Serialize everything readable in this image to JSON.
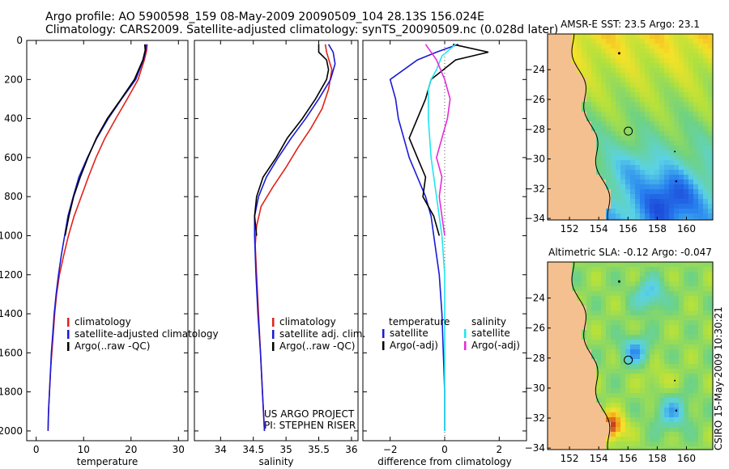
{
  "header": {
    "line1": "Argo profile: AO 5900598_159 08-May-2009 20090509_104 28.13S 156.024E",
    "line2": "Climatology: CARS2009. Satellite-adjusted climatology: synTS_20090509.nc (0.028d later)"
  },
  "colors": {
    "climatology": "#e0231b",
    "satellite": "#1a1ad6",
    "argo": "#000000",
    "cyan": "#22e4ef",
    "magenta": "#e52ad8",
    "land": "#f5c08f"
  },
  "credits": {
    "line1": "US ARGO PROJECT",
    "line2": "PI: STEPHEN RISER"
  },
  "stamp": "CSIRO 15-May-2009 10:30:21",
  "chart_data": [
    {
      "type": "line",
      "id": "temperature",
      "xlabel": "temperature",
      "xlim": [
        -2,
        32
      ],
      "ylim": [
        2050,
        0
      ],
      "xticks": [
        0,
        10,
        20,
        30
      ],
      "yticks": [
        0,
        200,
        400,
        600,
        800,
        1000,
        1200,
        1400,
        1600,
        1800,
        2000
      ],
      "legend": [
        "climatology",
        "satellite-adjusted climatology",
        "Argo(..raw -QC)"
      ],
      "series": [
        {
          "name": "climatology",
          "color": "#e0231b",
          "points": [
            [
              23.4,
              20
            ],
            [
              23.3,
              50
            ],
            [
              22.8,
              100
            ],
            [
              21.5,
              200
            ],
            [
              19.2,
              300
            ],
            [
              16.8,
              400
            ],
            [
              14.5,
              500
            ],
            [
              12.6,
              600
            ],
            [
              11,
              700
            ],
            [
              9.5,
              800
            ],
            [
              8,
              900
            ],
            [
              6.8,
              1000
            ],
            [
              5.8,
              1100
            ],
            [
              4.9,
              1200
            ],
            [
              4.3,
              1300
            ],
            [
              3.9,
              1400
            ],
            [
              3.6,
              1500
            ],
            [
              3.3,
              1600
            ],
            [
              3,
              1700
            ],
            [
              2.8,
              1800
            ],
            [
              2.6,
              1900
            ],
            [
              2.5,
              2000
            ]
          ]
        },
        {
          "name": "satellite-adjusted climatology",
          "color": "#1a1ad6",
          "points": [
            [
              23.2,
              20
            ],
            [
              23.1,
              50
            ],
            [
              22.6,
              100
            ],
            [
              21,
              200
            ],
            [
              18,
              300
            ],
            [
              15.2,
              400
            ],
            [
              12.8,
              500
            ],
            [
              10.8,
              600
            ],
            [
              9,
              700
            ],
            [
              7.8,
              800
            ],
            [
              6.7,
              900
            ],
            [
              6,
              1000
            ],
            [
              5.3,
              1100
            ],
            [
              4.7,
              1200
            ],
            [
              4.2,
              1300
            ],
            [
              3.8,
              1400
            ],
            [
              3.5,
              1500
            ],
            [
              3.2,
              1600
            ],
            [
              3,
              1700
            ],
            [
              2.8,
              1800
            ],
            [
              2.6,
              1900
            ],
            [
              2.5,
              2000
            ]
          ]
        },
        {
          "name": "Argo(..raw -QC)",
          "color": "#000000",
          "points": [
            [
              22.9,
              20
            ],
            [
              23,
              50
            ],
            [
              22.5,
              100
            ],
            [
              20.7,
              200
            ],
            [
              17.9,
              300
            ],
            [
              15,
              400
            ],
            [
              12.7,
              500
            ],
            [
              10.9,
              600
            ],
            [
              9.3,
              700
            ],
            [
              7.9,
              800
            ],
            [
              6.9,
              900
            ],
            [
              6.1,
              1000
            ]
          ]
        }
      ]
    },
    {
      "type": "line",
      "id": "salinity",
      "xlabel": "salinity",
      "xlim": [
        33.6,
        36.1
      ],
      "ylim": [
        2050,
        0
      ],
      "xticks": [
        34,
        34.5,
        35,
        35.5,
        36
      ],
      "legend": [
        "climatology",
        "satellite adj. clim.",
        "Argo(..raw -QC)"
      ],
      "series": [
        {
          "name": "climatology",
          "color": "#e0231b",
          "points": [
            [
              35.6,
              20
            ],
            [
              35.62,
              60
            ],
            [
              35.7,
              150
            ],
            [
              35.65,
              250
            ],
            [
              35.55,
              350
            ],
            [
              35.38,
              450
            ],
            [
              35.18,
              550
            ],
            [
              35,
              650
            ],
            [
              34.8,
              750
            ],
            [
              34.62,
              850
            ],
            [
              34.55,
              950
            ],
            [
              34.53,
              1050
            ],
            [
              34.55,
              1200
            ],
            [
              34.58,
              1400
            ],
            [
              34.61,
              1600
            ],
            [
              34.64,
              1800
            ],
            [
              34.67,
              2000
            ]
          ]
        },
        {
          "name": "satellite adj. clim.",
          "color": "#1a1ad6",
          "points": [
            [
              35.65,
              20
            ],
            [
              35.72,
              60
            ],
            [
              35.75,
              120
            ],
            [
              35.68,
              200
            ],
            [
              35.5,
              300
            ],
            [
              35.3,
              400
            ],
            [
              35.08,
              500
            ],
            [
              34.88,
              600
            ],
            [
              34.7,
              700
            ],
            [
              34.58,
              800
            ],
            [
              34.52,
              900
            ],
            [
              34.52,
              1000
            ],
            [
              34.54,
              1200
            ],
            [
              34.57,
              1400
            ],
            [
              34.61,
              1600
            ],
            [
              34.64,
              1800
            ],
            [
              34.67,
              2000
            ]
          ]
        },
        {
          "name": "Argo(..raw -QC)",
          "color": "#000000",
          "points": [
            [
              35.5,
              20
            ],
            [
              35.5,
              60
            ],
            [
              35.62,
              100
            ],
            [
              35.65,
              150
            ],
            [
              35.62,
              200
            ],
            [
              35.45,
              300
            ],
            [
              35.25,
              400
            ],
            [
              35.02,
              500
            ],
            [
              34.85,
              600
            ],
            [
              34.65,
              700
            ],
            [
              34.55,
              800
            ],
            [
              34.52,
              900
            ],
            [
              34.55,
              1000
            ]
          ]
        }
      ]
    },
    {
      "type": "line",
      "id": "difference",
      "xlabel": "difference from climatology",
      "xlim": [
        -3,
        3
      ],
      "ylim": [
        2050,
        0
      ],
      "xticks": [
        -2,
        0,
        2
      ],
      "legend_temperature": {
        "title": "temperature",
        "items": [
          "satellite",
          "Argo(-adj)"
        ]
      },
      "legend_salinity": {
        "title": "salinity",
        "items": [
          "satellite",
          "Argo(-adj)"
        ]
      },
      "series": [
        {
          "name": "temperature satellite",
          "color": "#1a1ad6",
          "points": [
            [
              0.5,
              20
            ],
            [
              -0.3,
              60
            ],
            [
              -1,
              100
            ],
            [
              -2,
              200
            ],
            [
              -1.8,
              300
            ],
            [
              -1.7,
              400
            ],
            [
              -1.5,
              500
            ],
            [
              -1.3,
              600
            ],
            [
              -1,
              700
            ],
            [
              -0.7,
              800
            ],
            [
              -0.5,
              900
            ],
            [
              -0.4,
              1000
            ],
            [
              -0.3,
              1100
            ],
            [
              -0.2,
              1200
            ],
            [
              -0.1,
              1400
            ],
            [
              -0.05,
              1600
            ],
            [
              0,
              1800
            ],
            [
              0,
              2000
            ]
          ]
        },
        {
          "name": "temperature Argo(-adj)",
          "color": "#000000",
          "points": [
            [
              0.3,
              20
            ],
            [
              1.6,
              60
            ],
            [
              0.4,
              100
            ],
            [
              -0.5,
              200
            ],
            [
              -0.7,
              300
            ],
            [
              -1,
              400
            ],
            [
              -1.3,
              500
            ],
            [
              -1,
              600
            ],
            [
              -0.7,
              700
            ],
            [
              -0.8,
              800
            ],
            [
              -0.4,
              900
            ],
            [
              -0.2,
              1000
            ]
          ]
        },
        {
          "name": "salinity satellite",
          "color": "#22e4ef",
          "points": [
            [
              0.4,
              20
            ],
            [
              -0.1,
              80
            ],
            [
              -0.3,
              150
            ],
            [
              -0.5,
              200
            ],
            [
              -0.6,
              250
            ],
            [
              -0.6,
              400
            ],
            [
              -0.5,
              600
            ],
            [
              -0.3,
              800
            ],
            [
              -0.1,
              1000
            ],
            [
              0,
              1200
            ],
            [
              0,
              1600
            ],
            [
              0,
              2000
            ]
          ]
        },
        {
          "name": "salinity Argo(-adj)",
          "color": "#e52ad8",
          "points": [
            [
              -0.7,
              20
            ],
            [
              -0.3,
              100
            ],
            [
              0,
              200
            ],
            [
              0.2,
              300
            ],
            [
              0.1,
              400
            ],
            [
              -0.1,
              500
            ],
            [
              -0.3,
              600
            ],
            [
              -0.1,
              700
            ],
            [
              -0.2,
              800
            ],
            [
              -0.1,
              900
            ],
            [
              0,
              1000
            ]
          ]
        }
      ]
    },
    {
      "type": "heatmap",
      "id": "sst-map",
      "title": "AMSR-E SST: 23.5 Argo: 23.1",
      "xticks": [
        152,
        154,
        156,
        158,
        160
      ],
      "yticks": [
        -24,
        -26,
        -28,
        -30,
        -32,
        -34
      ],
      "xlim": [
        150.5,
        161.8
      ],
      "ylim": [
        -34.1,
        -21.6
      ],
      "argo_position": [
        156.02,
        -28.13
      ]
    },
    {
      "type": "heatmap",
      "id": "sla-map",
      "title": "Altimetric SLA: -0.12 Argo: -0.047",
      "xticks": [
        152,
        154,
        156,
        158,
        160
      ],
      "yticks": [
        -24,
        -26,
        -28,
        -30,
        -32,
        -34
      ],
      "xlim": [
        150.5,
        161.8
      ],
      "ylim": [
        -34.1,
        -21.6
      ],
      "argo_position": [
        156.02,
        -28.13
      ]
    }
  ]
}
